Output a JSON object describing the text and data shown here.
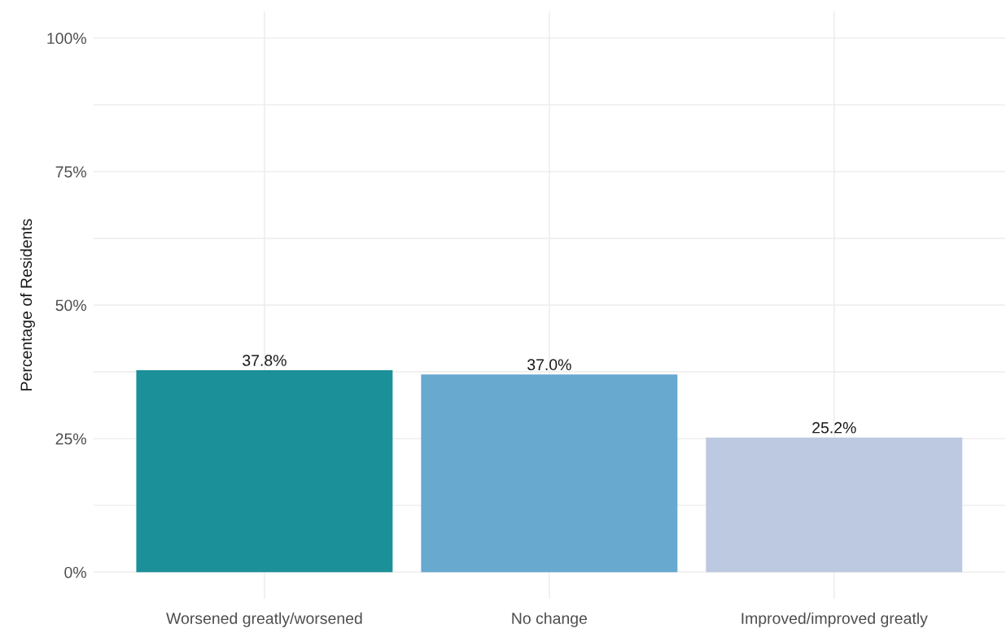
{
  "chart_data": {
    "type": "bar",
    "ylabel": "Percentage of Residents",
    "categories": [
      "Worsened greatly/worsened",
      "No change",
      "Improved/improved greatly"
    ],
    "values": [
      37.8,
      37.0,
      25.2
    ],
    "colors": [
      "#1c9099",
      "#67a9cf",
      "#bdc9e1"
    ],
    "value_labels": [
      "37.8%",
      "37.0%",
      "25.2%"
    ],
    "ylim": [
      -5,
      105
    ],
    "yticks": [
      {
        "value": 0,
        "label": "0%"
      },
      {
        "value": 12.5,
        "label": null
      },
      {
        "value": 25,
        "label": "25%"
      },
      {
        "value": 37.5,
        "label": null
      },
      {
        "value": 50,
        "label": "50%"
      },
      {
        "value": 62.5,
        "label": null
      },
      {
        "value": 75,
        "label": "75%"
      },
      {
        "value": 87.5,
        "label": null
      },
      {
        "value": 100,
        "label": "100%"
      }
    ],
    "grid": true,
    "legend": false
  }
}
